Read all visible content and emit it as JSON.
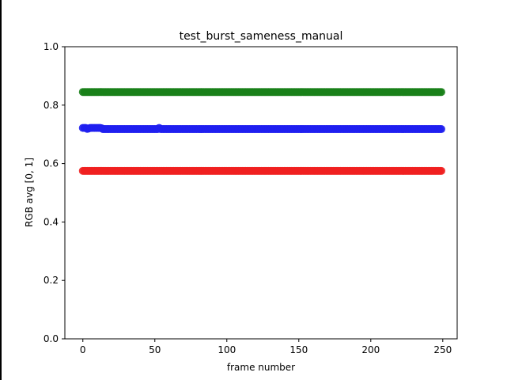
{
  "chart_data": {
    "type": "scatter",
    "title": "test_burst_sameness_manual",
    "xlabel": "frame number",
    "ylabel": "RGB avg [0, 1]",
    "xlim": [
      -12.5,
      260
    ],
    "ylim": [
      0,
      1
    ],
    "xticks": [
      0,
      50,
      100,
      150,
      200,
      250
    ],
    "yticks": [
      0.0,
      0.2,
      0.4,
      0.6,
      0.8,
      1.0
    ],
    "ytick_labels": [
      "0.0",
      "0.2",
      "0.4",
      "0.6",
      "0.8",
      "1.0"
    ],
    "grid": false,
    "x_range": [
      0,
      249
    ],
    "series": [
      {
        "color": "#1a7f1a",
        "values": [
          0.845,
          0.845,
          0.845,
          0.845,
          0.845,
          0.845,
          0.845,
          0.845,
          0.845,
          0.845,
          0.845,
          0.845,
          0.845,
          0.845,
          0.845,
          0.845,
          0.845,
          0.845,
          0.845,
          0.845,
          0.845,
          0.845,
          0.845,
          0.845,
          0.845,
          0.845,
          0.845,
          0.845,
          0.845,
          0.845,
          0.845,
          0.845,
          0.845,
          0.845,
          0.845,
          0.845,
          0.845,
          0.845,
          0.845,
          0.845,
          0.845,
          0.845,
          0.845,
          0.845,
          0.845,
          0.845,
          0.845,
          0.845,
          0.845,
          0.845,
          0.845,
          0.845,
          0.845,
          0.845,
          0.845,
          0.845,
          0.845,
          0.845,
          0.845,
          0.845,
          0.845,
          0.845,
          0.845,
          0.845,
          0.845,
          0.845,
          0.845,
          0.845,
          0.845,
          0.845,
          0.845,
          0.845,
          0.845,
          0.845,
          0.845,
          0.845,
          0.845,
          0.845,
          0.845,
          0.845,
          0.845,
          0.845,
          0.845,
          0.845,
          0.845,
          0.845,
          0.845,
          0.845,
          0.845,
          0.845,
          0.845,
          0.845,
          0.845,
          0.845,
          0.845,
          0.845,
          0.845,
          0.845,
          0.845,
          0.845,
          0.845,
          0.845,
          0.845,
          0.845,
          0.845,
          0.845,
          0.845,
          0.845,
          0.845,
          0.845,
          0.845,
          0.845,
          0.845,
          0.845,
          0.845,
          0.845,
          0.845,
          0.845,
          0.845,
          0.845,
          0.845,
          0.845,
          0.845,
          0.845,
          0.845,
          0.845,
          0.845,
          0.845,
          0.845,
          0.845,
          0.845,
          0.845,
          0.845,
          0.845,
          0.845,
          0.845,
          0.845,
          0.845,
          0.845,
          0.845,
          0.845,
          0.845,
          0.845,
          0.845,
          0.845,
          0.845,
          0.845,
          0.845,
          0.845,
          0.845,
          0.845,
          0.845,
          0.845,
          0.845,
          0.845,
          0.845,
          0.845,
          0.845,
          0.845,
          0.845,
          0.845,
          0.845,
          0.845,
          0.845,
          0.845,
          0.845,
          0.845,
          0.845,
          0.845,
          0.845,
          0.845,
          0.845,
          0.845,
          0.845,
          0.845,
          0.845,
          0.845,
          0.845,
          0.845,
          0.845,
          0.845,
          0.845,
          0.845,
          0.845,
          0.845,
          0.845,
          0.845,
          0.845,
          0.845,
          0.845,
          0.845,
          0.845,
          0.845,
          0.845,
          0.845,
          0.845,
          0.845,
          0.845,
          0.845,
          0.845,
          0.845,
          0.845,
          0.845,
          0.845,
          0.845,
          0.845,
          0.845,
          0.845,
          0.845,
          0.845,
          0.845,
          0.845,
          0.845,
          0.845,
          0.845,
          0.845,
          0.845,
          0.845,
          0.845,
          0.845,
          0.845,
          0.845,
          0.845,
          0.845,
          0.845,
          0.845,
          0.845,
          0.845,
          0.845,
          0.845,
          0.845,
          0.845,
          0.845,
          0.845,
          0.845,
          0.845,
          0.845,
          0.845,
          0.845,
          0.845,
          0.845,
          0.845,
          0.845,
          0.845,
          0.845,
          0.845,
          0.845,
          0.845,
          0.845,
          0.845
        ]
      },
      {
        "color": "#1f1ff0",
        "values": [
          0.722,
          0.722,
          0.722,
          0.719,
          0.72,
          0.722,
          0.722,
          0.722,
          0.722,
          0.722,
          0.722,
          0.722,
          0.722,
          0.721,
          0.718,
          0.718,
          0.718,
          0.718,
          0.718,
          0.718,
          0.718,
          0.718,
          0.718,
          0.718,
          0.718,
          0.718,
          0.718,
          0.718,
          0.718,
          0.718,
          0.718,
          0.718,
          0.718,
          0.718,
          0.718,
          0.718,
          0.718,
          0.718,
          0.718,
          0.718,
          0.718,
          0.718,
          0.718,
          0.718,
          0.718,
          0.718,
          0.718,
          0.718,
          0.718,
          0.718,
          0.718,
          0.718,
          0.718,
          0.722,
          0.718,
          0.718,
          0.718,
          0.718,
          0.718,
          0.718,
          0.718,
          0.718,
          0.718,
          0.718,
          0.718,
          0.718,
          0.718,
          0.718,
          0.718,
          0.718,
          0.718,
          0.718,
          0.718,
          0.718,
          0.718,
          0.718,
          0.718,
          0.718,
          0.718,
          0.718,
          0.718,
          0.718,
          0.718,
          0.718,
          0.718,
          0.718,
          0.718,
          0.718,
          0.718,
          0.718,
          0.718,
          0.718,
          0.718,
          0.718,
          0.718,
          0.718,
          0.718,
          0.718,
          0.718,
          0.718,
          0.718,
          0.718,
          0.718,
          0.718,
          0.718,
          0.718,
          0.718,
          0.718,
          0.718,
          0.718,
          0.718,
          0.718,
          0.718,
          0.718,
          0.718,
          0.718,
          0.718,
          0.718,
          0.718,
          0.718,
          0.718,
          0.718,
          0.718,
          0.718,
          0.718,
          0.718,
          0.718,
          0.718,
          0.718,
          0.718,
          0.718,
          0.718,
          0.718,
          0.718,
          0.718,
          0.718,
          0.718,
          0.718,
          0.718,
          0.718,
          0.718,
          0.718,
          0.718,
          0.718,
          0.718,
          0.718,
          0.718,
          0.718,
          0.718,
          0.718,
          0.718,
          0.718,
          0.718,
          0.718,
          0.718,
          0.718,
          0.718,
          0.718,
          0.718,
          0.718,
          0.718,
          0.718,
          0.718,
          0.718,
          0.718,
          0.718,
          0.718,
          0.718,
          0.718,
          0.718,
          0.718,
          0.718,
          0.718,
          0.718,
          0.718,
          0.718,
          0.718,
          0.718,
          0.718,
          0.718,
          0.718,
          0.718,
          0.718,
          0.718,
          0.718,
          0.718,
          0.718,
          0.718,
          0.718,
          0.718,
          0.718,
          0.718,
          0.718,
          0.718,
          0.718,
          0.718,
          0.718,
          0.718,
          0.718,
          0.718,
          0.718,
          0.718,
          0.718,
          0.718,
          0.718,
          0.718,
          0.718,
          0.718,
          0.718,
          0.718,
          0.718,
          0.718,
          0.718,
          0.718,
          0.718,
          0.718,
          0.718,
          0.718,
          0.718,
          0.718,
          0.718,
          0.718,
          0.718,
          0.718,
          0.718,
          0.718,
          0.718,
          0.718,
          0.718,
          0.718,
          0.718,
          0.718,
          0.718,
          0.718,
          0.718,
          0.718,
          0.718,
          0.718,
          0.718,
          0.718,
          0.718,
          0.718,
          0.718,
          0.718,
          0.718,
          0.718,
          0.718,
          0.718,
          0.718,
          0.718
        ]
      },
      {
        "color": "#f02020",
        "values": [
          0.575,
          0.575,
          0.575,
          0.575,
          0.575,
          0.575,
          0.575,
          0.575,
          0.575,
          0.575,
          0.575,
          0.575,
          0.575,
          0.575,
          0.575,
          0.575,
          0.575,
          0.575,
          0.575,
          0.575,
          0.575,
          0.575,
          0.575,
          0.575,
          0.575,
          0.575,
          0.575,
          0.575,
          0.575,
          0.575,
          0.575,
          0.575,
          0.575,
          0.575,
          0.575,
          0.575,
          0.575,
          0.575,
          0.575,
          0.575,
          0.575,
          0.575,
          0.575,
          0.575,
          0.575,
          0.575,
          0.575,
          0.575,
          0.575,
          0.575,
          0.575,
          0.575,
          0.575,
          0.575,
          0.575,
          0.575,
          0.575,
          0.575,
          0.575,
          0.575,
          0.575,
          0.575,
          0.575,
          0.575,
          0.575,
          0.575,
          0.575,
          0.575,
          0.575,
          0.575,
          0.575,
          0.575,
          0.575,
          0.575,
          0.575,
          0.575,
          0.575,
          0.575,
          0.575,
          0.575,
          0.575,
          0.575,
          0.575,
          0.575,
          0.575,
          0.575,
          0.575,
          0.575,
          0.575,
          0.575,
          0.575,
          0.575,
          0.575,
          0.575,
          0.575,
          0.575,
          0.575,
          0.575,
          0.575,
          0.575,
          0.575,
          0.575,
          0.575,
          0.575,
          0.575,
          0.575,
          0.575,
          0.575,
          0.575,
          0.575,
          0.575,
          0.575,
          0.575,
          0.575,
          0.575,
          0.575,
          0.575,
          0.575,
          0.575,
          0.575,
          0.575,
          0.575,
          0.575,
          0.575,
          0.575,
          0.575,
          0.575,
          0.575,
          0.575,
          0.575,
          0.575,
          0.575,
          0.575,
          0.575,
          0.575,
          0.575,
          0.575,
          0.575,
          0.575,
          0.575,
          0.575,
          0.575,
          0.575,
          0.575,
          0.575,
          0.575,
          0.575,
          0.575,
          0.575,
          0.575,
          0.575,
          0.575,
          0.575,
          0.575,
          0.575,
          0.575,
          0.575,
          0.575,
          0.575,
          0.575,
          0.575,
          0.575,
          0.575,
          0.575,
          0.575,
          0.575,
          0.575,
          0.575,
          0.575,
          0.575,
          0.575,
          0.575,
          0.575,
          0.575,
          0.575,
          0.575,
          0.575,
          0.575,
          0.575,
          0.575,
          0.575,
          0.575,
          0.575,
          0.575,
          0.575,
          0.575,
          0.575,
          0.575,
          0.575,
          0.575,
          0.575,
          0.575,
          0.575,
          0.575,
          0.575,
          0.575,
          0.575,
          0.575,
          0.575,
          0.575,
          0.575,
          0.575,
          0.575,
          0.575,
          0.575,
          0.575,
          0.575,
          0.575,
          0.575,
          0.575,
          0.575,
          0.575,
          0.575,
          0.575,
          0.575,
          0.575,
          0.575,
          0.575,
          0.575,
          0.575,
          0.575,
          0.575,
          0.575,
          0.575,
          0.575,
          0.575,
          0.575,
          0.575,
          0.575,
          0.575,
          0.575,
          0.575,
          0.575,
          0.575,
          0.575,
          0.575,
          0.575,
          0.575,
          0.575,
          0.575,
          0.575,
          0.575,
          0.575,
          0.575,
          0.575,
          0.575,
          0.575,
          0.575,
          0.575,
          0.575
        ]
      }
    ]
  }
}
